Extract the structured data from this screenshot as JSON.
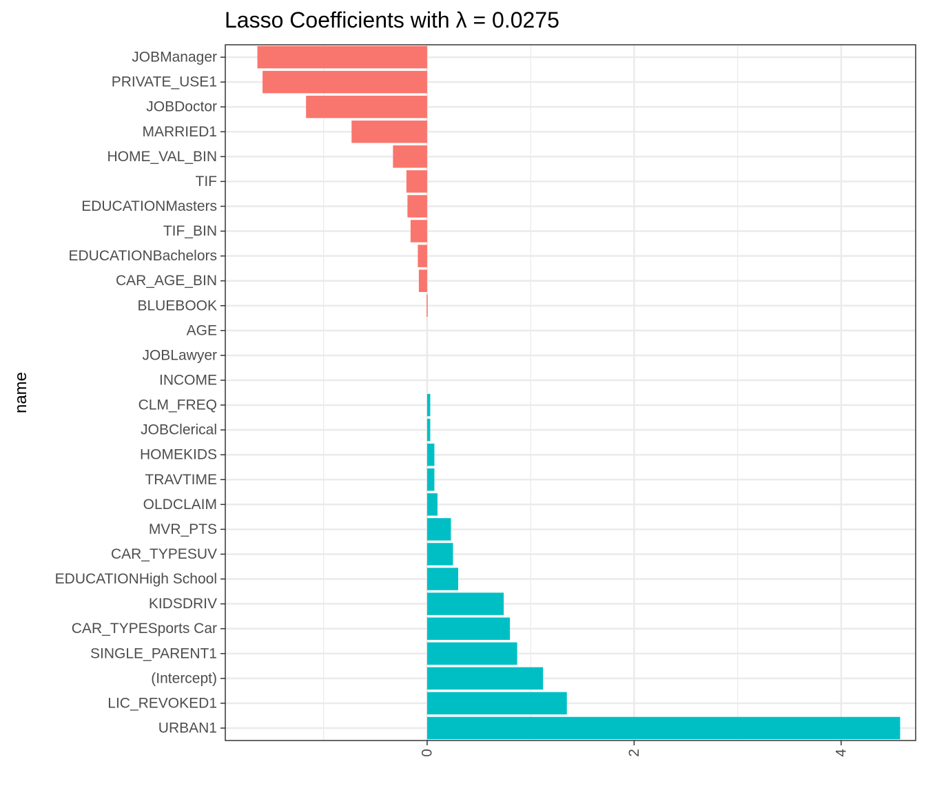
{
  "chart_data": {
    "type": "bar",
    "orientation": "horizontal",
    "title": "Lasso Coefficients with λ = 0.0275",
    "xlabel": "",
    "ylabel": "name",
    "xlim": [
      -1.95,
      4.72
    ],
    "x_ticks": [
      0,
      2,
      4
    ],
    "x_tick_labels": [
      "0",
      "2",
      "4"
    ],
    "x_minor_ticks": [
      -1,
      1,
      3
    ],
    "grid": true,
    "theme": "bw",
    "legend": "none",
    "colors": {
      "negative": "#F8766D",
      "positive": "#00BFC4",
      "grid": "#EBEBEB",
      "panel_border": "#333333",
      "text": "#4D4D4D",
      "title": "#000000"
    },
    "categories": [
      "JOBManager",
      "PRIVATE_USE1",
      "JOBDoctor",
      "MARRIED1",
      "HOME_VAL_BIN",
      "TIF",
      "EDUCATIONMasters",
      "TIF_BIN",
      "EDUCATIONBachelors",
      "CAR_AGE_BIN",
      "BLUEBOOK",
      "AGE",
      "JOBLawyer",
      "INCOME",
      "CLM_FREQ",
      "JOBClerical",
      "HOMEKIDS",
      "TRAVTIME",
      "OLDCLAIM",
      "MVR_PTS",
      "CAR_TYPESUV",
      "EDUCATIONHigh School",
      "KIDSDRIV",
      "CAR_TYPESports Car",
      "SINGLE_PARENT1",
      "(Intercept)",
      "LIC_REVOKED1",
      "URBAN1"
    ],
    "values": [
      -1.64,
      -1.59,
      -1.17,
      -0.73,
      -0.33,
      -0.2,
      -0.19,
      -0.16,
      -0.09,
      -0.08,
      -0.005,
      0.0,
      0.0,
      0.0,
      0.03,
      0.03,
      0.07,
      0.07,
      0.1,
      0.23,
      0.25,
      0.3,
      0.74,
      0.8,
      0.87,
      1.12,
      1.35,
      4.57
    ]
  }
}
